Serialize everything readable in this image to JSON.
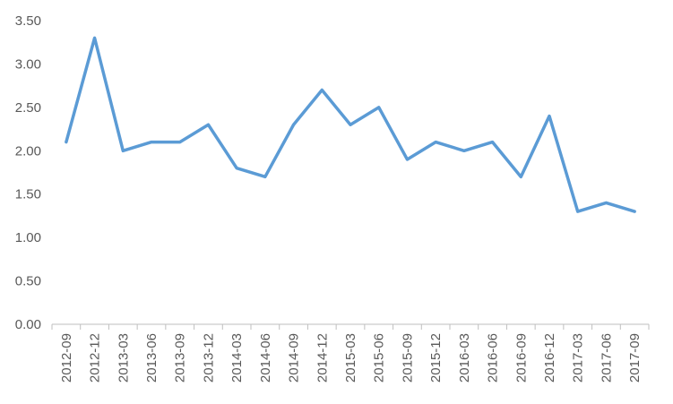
{
  "chart_data": {
    "type": "line",
    "title": "",
    "xlabel": "",
    "ylabel": "",
    "categories": [
      "2012-09",
      "2012-12",
      "2013-03",
      "2013-06",
      "2013-09",
      "2013-12",
      "2014-03",
      "2014-06",
      "2014-09",
      "2014-12",
      "2015-03",
      "2015-06",
      "2015-09",
      "2015-12",
      "2016-03",
      "2016-06",
      "2016-09",
      "2016-12",
      "2017-03",
      "2017-06",
      "2017-09"
    ],
    "series": [
      {
        "values": [
          2.1,
          3.3,
          2.0,
          2.1,
          2.1,
          2.3,
          1.8,
          1.7,
          2.3,
          2.7,
          2.3,
          2.5,
          1.9,
          2.1,
          2.0,
          2.1,
          1.7,
          2.4,
          1.3,
          1.4,
          1.3
        ],
        "color": "#5b9bd5"
      }
    ],
    "ylim": [
      0,
      3.5
    ],
    "yticks": [
      "0.00",
      "0.50",
      "1.00",
      "1.50",
      "2.00",
      "2.50",
      "3.00",
      "3.50"
    ],
    "grid": false,
    "legend": "none"
  }
}
